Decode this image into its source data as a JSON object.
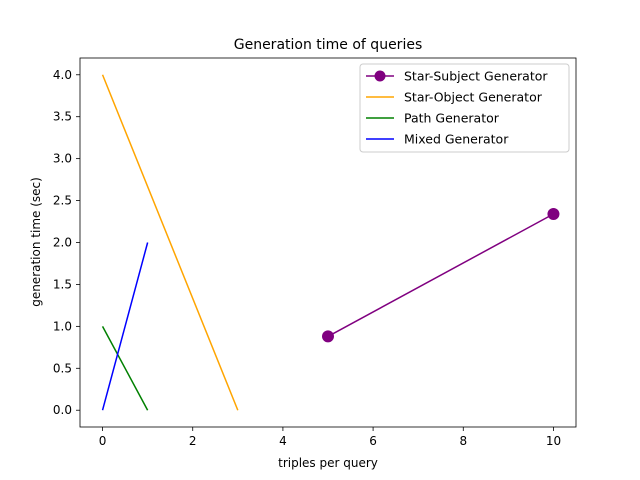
{
  "chart_data": {
    "type": "line",
    "title": "Generation time of queries",
    "xlabel": "triples per query",
    "ylabel": "generation time (sec)",
    "xlim": [
      -0.5,
      10.5
    ],
    "ylim": [
      -0.2,
      4.2
    ],
    "xticks": [
      0,
      2,
      4,
      6,
      8,
      10
    ],
    "yticks": [
      0.0,
      0.5,
      1.0,
      1.5,
      2.0,
      2.5,
      3.0,
      3.5,
      4.0
    ],
    "xtick_labels": [
      "0",
      "2",
      "4",
      "6",
      "8",
      "10"
    ],
    "ytick_labels": [
      "0.0",
      "0.5",
      "1.0",
      "1.5",
      "2.0",
      "2.5",
      "3.0",
      "3.5",
      "4.0"
    ],
    "grid": false,
    "legend_position": "top-right",
    "series": [
      {
        "name": "Star-Subject Generator",
        "color": "#800080",
        "marker": "circle",
        "x": [
          5,
          10
        ],
        "y": [
          0.88,
          2.34
        ]
      },
      {
        "name": "Star-Object Generator",
        "color": "#ffa500",
        "marker": "none",
        "x": [
          0,
          3
        ],
        "y": [
          4.0,
          0.0
        ]
      },
      {
        "name": "Path Generator",
        "color": "#008000",
        "marker": "none",
        "x": [
          0,
          1
        ],
        "y": [
          1.0,
          0.0
        ]
      },
      {
        "name": "Mixed Generator",
        "color": "#0000ff",
        "marker": "none",
        "x": [
          0,
          1
        ],
        "y": [
          0.0,
          2.0
        ]
      }
    ]
  }
}
